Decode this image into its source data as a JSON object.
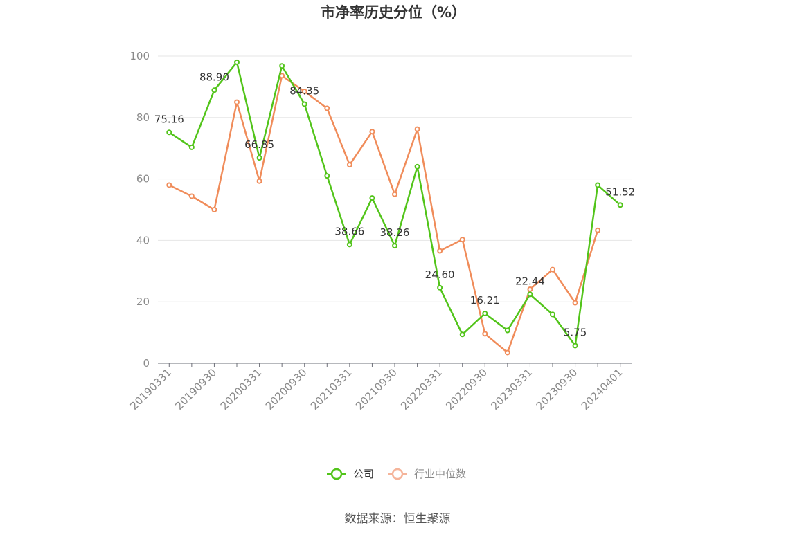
{
  "chart_data": {
    "type": "line",
    "title": "市净率历史分位（%）",
    "ylim": [
      0,
      100
    ],
    "yticks": [
      0,
      20,
      40,
      60,
      80,
      100
    ],
    "x": [
      "20190331",
      "20190630",
      "20190930",
      "20191231",
      "20200331",
      "20200630",
      "20200930",
      "20201231",
      "20210331",
      "20210630",
      "20210930",
      "20211231",
      "20220331",
      "20220630",
      "20220930",
      "20221231",
      "20230331",
      "20230630",
      "20230930",
      "20231231",
      "20240401"
    ],
    "x_tick_labels": [
      "20190331",
      "20190930",
      "20200331",
      "20200930",
      "20210331",
      "20210930",
      "20220331",
      "20220930",
      "20230331",
      "20230930",
      "20240401"
    ],
    "grid": true,
    "legend_position": "bottom",
    "series": [
      {
        "name": "公司",
        "color": "#52c41a",
        "values": [
          75.16,
          70.3,
          88.9,
          98.0,
          66.85,
          96.8,
          84.35,
          61.0,
          38.66,
          53.8,
          38.26,
          64.0,
          24.6,
          9.4,
          16.21,
          10.7,
          22.44,
          15.9,
          5.75,
          58.0,
          51.52
        ],
        "labels": [
          "75.16",
          "",
          "88.90",
          "",
          "66.85",
          "",
          "84.35",
          "",
          "38.66",
          "",
          "38.26",
          "",
          "24.60",
          "",
          "16.21",
          "",
          "22.44",
          "",
          "5.75",
          "",
          "51.52"
        ]
      },
      {
        "name": "行业中位数",
        "color": "#f08c5a",
        "values": [
          58.0,
          54.4,
          50.0,
          85.0,
          59.3,
          93.6,
          88.5,
          83.0,
          64.6,
          75.4,
          55.0,
          76.2,
          36.6,
          40.3,
          9.6,
          3.5,
          24.1,
          30.5,
          19.7,
          43.3,
          null
        ]
      }
    ]
  },
  "footer": {
    "source": "数据来源：恒生聚源"
  }
}
